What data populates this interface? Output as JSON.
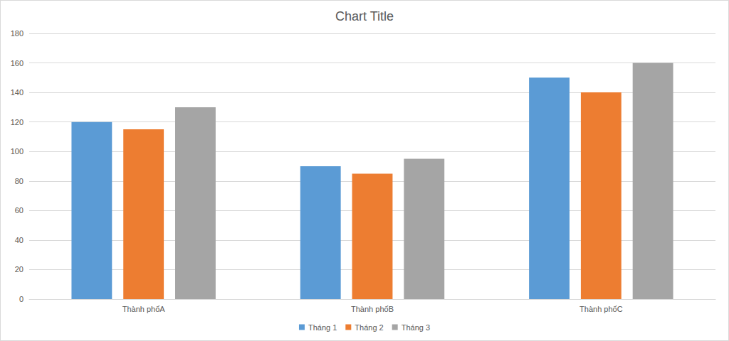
{
  "chart_data": {
    "type": "bar",
    "title": "Chart Title",
    "categories": [
      "Thành phốA",
      "Thành phốB",
      "Thành phốC"
    ],
    "series": [
      {
        "name": "Tháng 1",
        "color": "#5b9bd5",
        "values": [
          120,
          90,
          150
        ]
      },
      {
        "name": "Tháng 2",
        "color": "#ed7d31",
        "values": [
          115,
          85,
          140
        ]
      },
      {
        "name": "Tháng 3",
        "color": "#a5a5a5",
        "values": [
          130,
          95,
          160
        ]
      }
    ],
    "ylim": [
      0,
      180
    ],
    "yticks": [
      0,
      20,
      40,
      60,
      80,
      100,
      120,
      140,
      160,
      180
    ],
    "grid": true,
    "legend": "bottom"
  }
}
